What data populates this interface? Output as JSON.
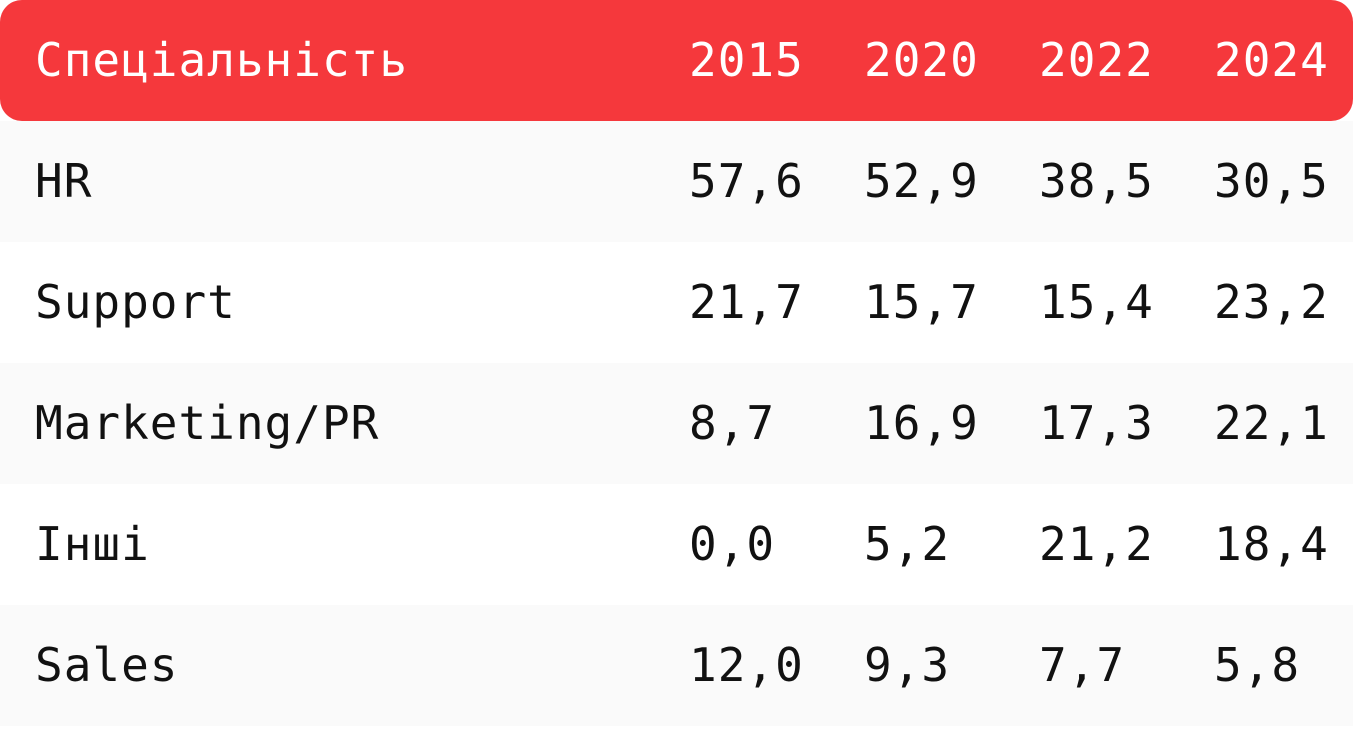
{
  "colors": {
    "header_bg": "#f5383c",
    "header_text": "#ffffff",
    "row_bg_alt": "#fafafa",
    "row_bg": "#ffffff",
    "text": "#111111"
  },
  "chart_data": {
    "type": "table",
    "columns": [
      "Спеціальність",
      "2015",
      "2020",
      "2022",
      "2024"
    ],
    "rows": [
      {
        "label": "HR",
        "values": [
          "57,6",
          "52,9",
          "38,5",
          "30,5"
        ]
      },
      {
        "label": "Support",
        "values": [
          "21,7",
          "15,7",
          "15,4",
          "23,2"
        ]
      },
      {
        "label": "Marketing/PR",
        "values": [
          "8,7",
          "16,9",
          "17,3",
          "22,1"
        ]
      },
      {
        "label": "Інші",
        "values": [
          "0,0",
          "5,2",
          "21,2",
          "18,4"
        ]
      },
      {
        "label": "Sales",
        "values": [
          "12,0",
          "9,3",
          "7,7",
          "5,8"
        ]
      }
    ]
  }
}
